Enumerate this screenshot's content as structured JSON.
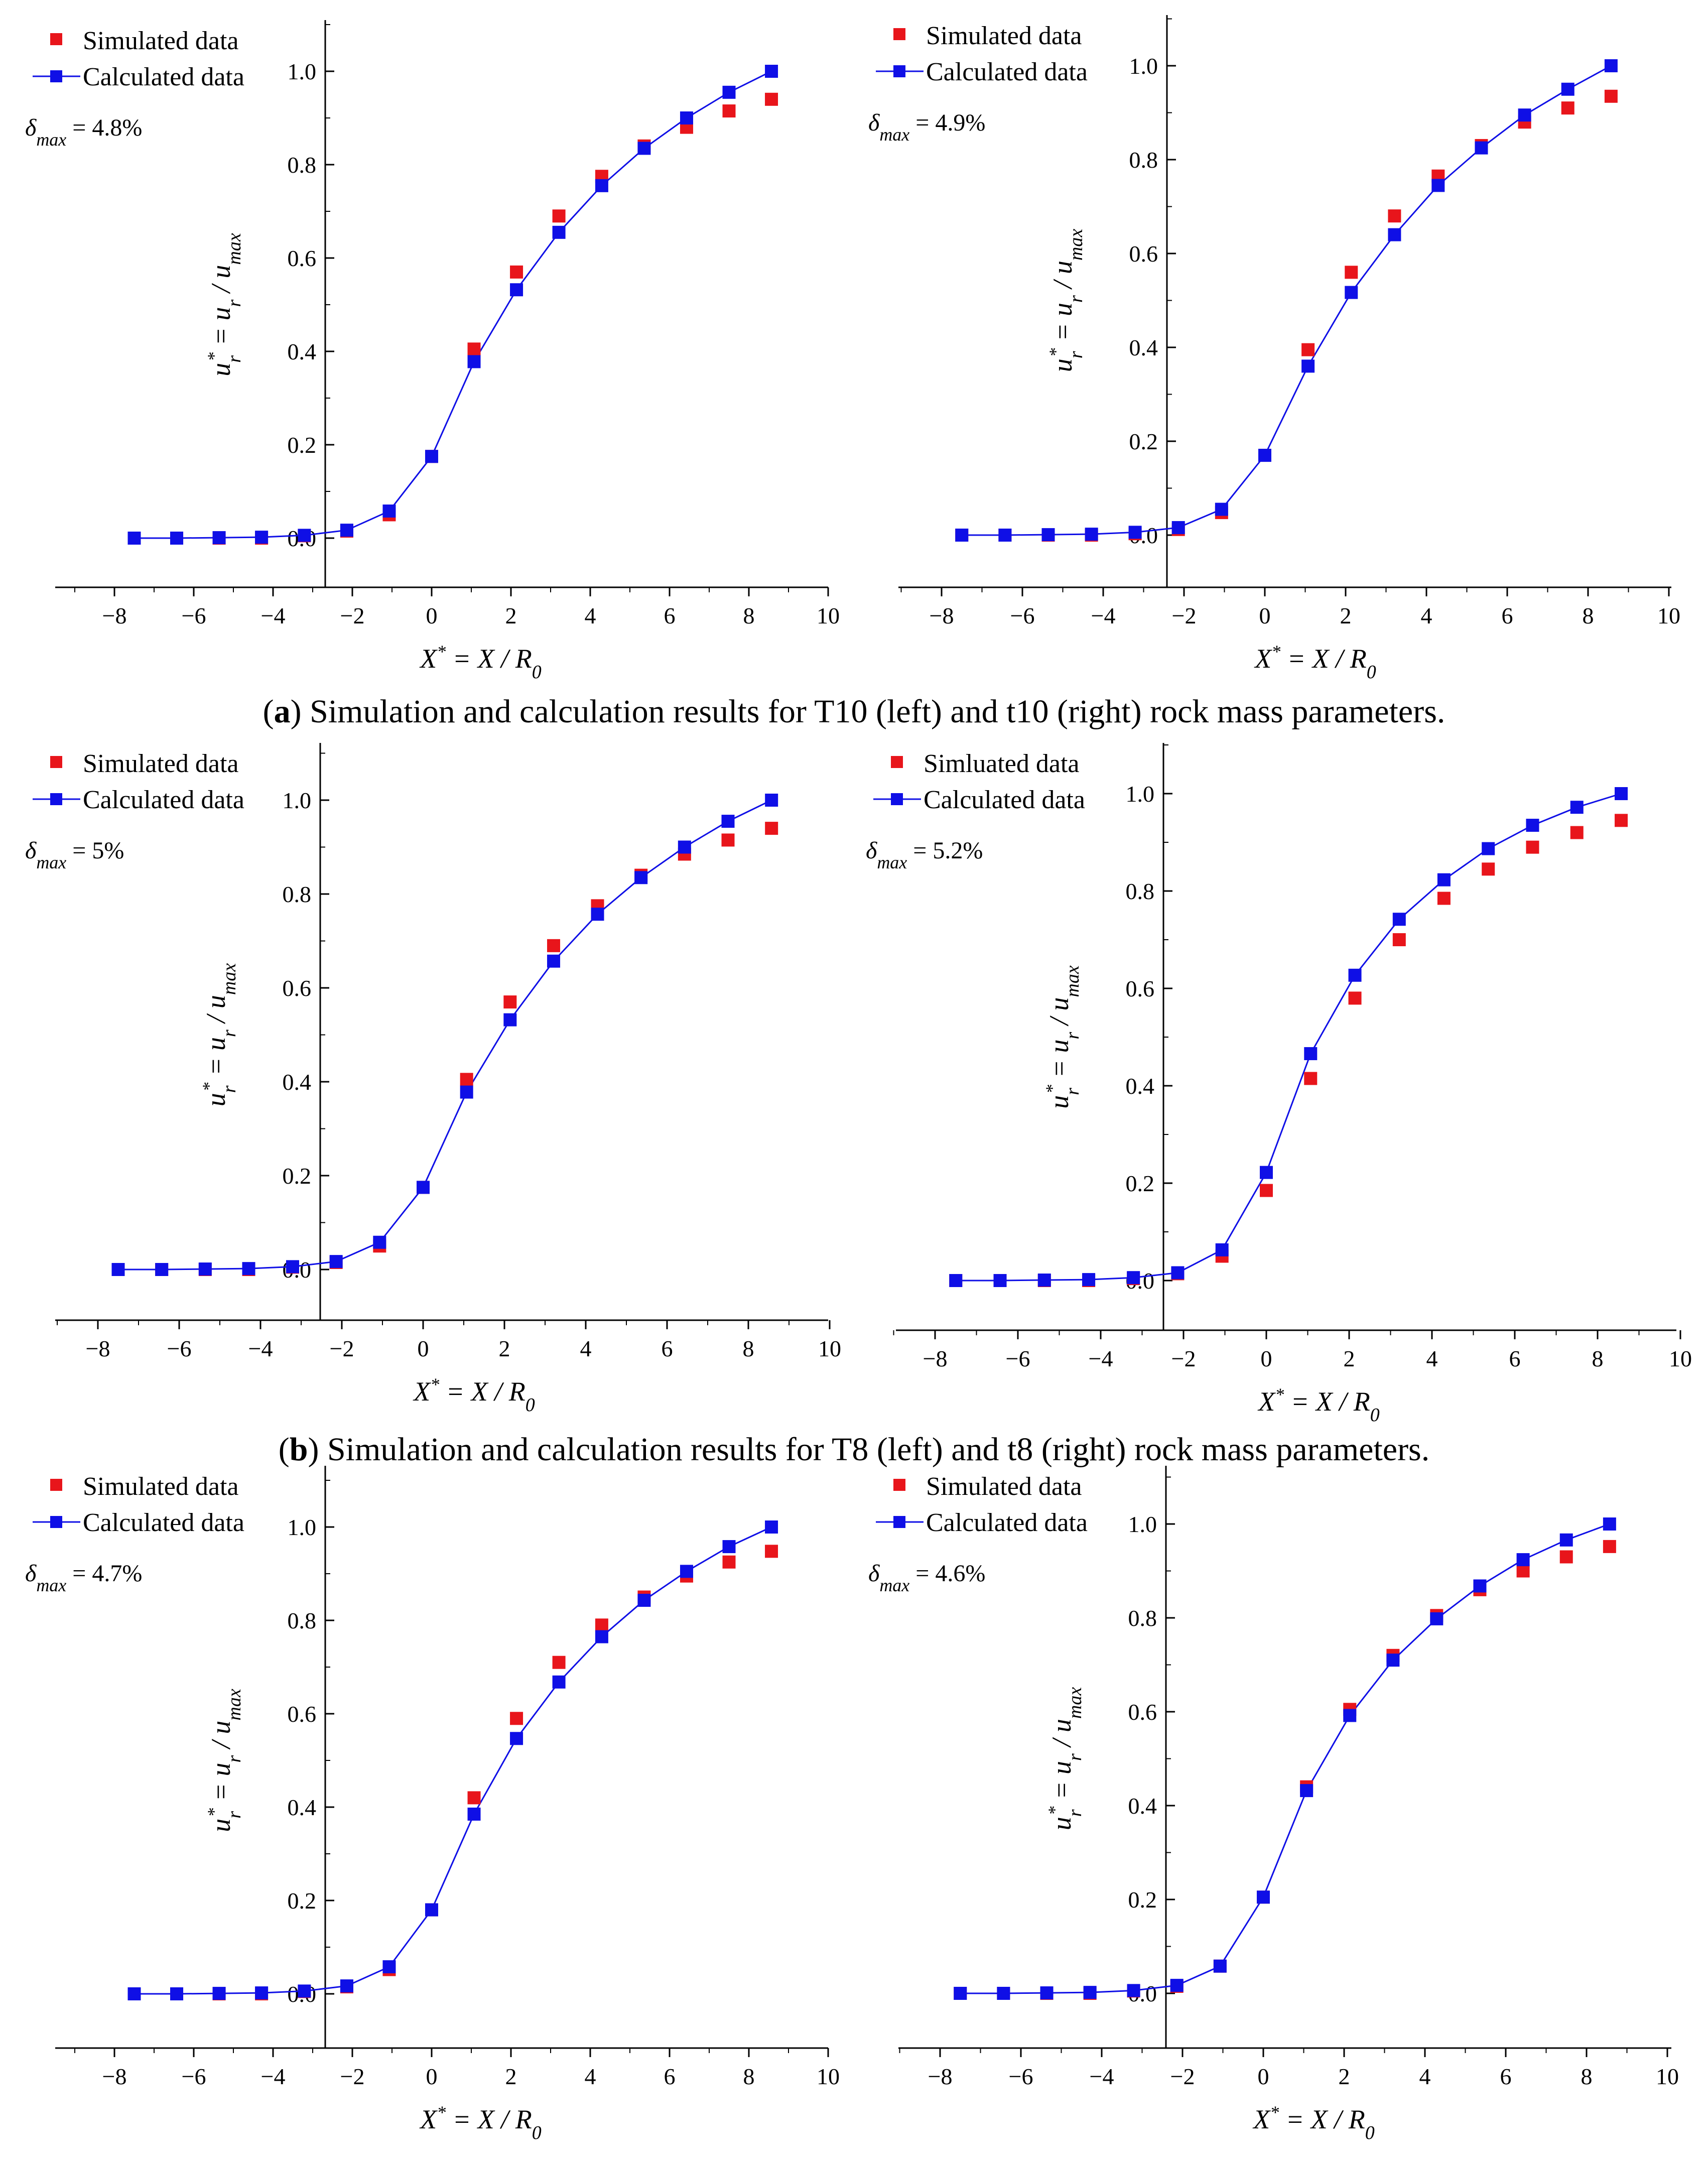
{
  "colors": {
    "simulated": "#e8151b",
    "calculated": "#0f0fe6",
    "axis": "#000000"
  },
  "captions": [
    {
      "letter": "a",
      "text": "Simulation and calculation results for T10 (left) and t10 (right) rock mass parameters."
    },
    {
      "letter": "b",
      "text": "Simulation and calculation results for T8 (left) and t8 (right) rock mass parameters."
    }
  ],
  "chart_data": [
    {
      "type": "line+scatter",
      "panel": "a-left",
      "legend": {
        "simulated": "Simulated data",
        "calculated": "Calculated data",
        "placement": "top-left"
      },
      "delta_text": "= 4.8%",
      "xlabel": "X* = X / R0",
      "ylabel": "ur* = ur / umax",
      "xlim": [
        -9,
        10
      ],
      "ylim": [
        -0.1,
        1.1
      ],
      "xticks": [
        -8,
        -6,
        -4,
        -2,
        0,
        2,
        4,
        6,
        8,
        10
      ],
      "xtick_labels": [
        "−8",
        "−6",
        "−4",
        "−2",
        "0",
        "2",
        "4",
        "6",
        "8",
        "10"
      ],
      "yticks": [
        0.0,
        0.2,
        0.4,
        0.6,
        0.8,
        1.0
      ],
      "ytick_labels": [
        "0.0",
        "0.2",
        "0.4",
        "0.6",
        "0.8",
        "1.0"
      ],
      "series": [
        {
          "name": "Simulated data",
          "x": [
            -7.5,
            -6.43,
            -5.36,
            -4.29,
            -3.21,
            -2.14,
            -1.07,
            0,
            1.07,
            2.14,
            3.21,
            4.29,
            5.36,
            6.43,
            7.5,
            8.57
          ],
          "y": [
            0.0,
            0.0,
            0.0,
            0.0,
            0.005,
            0.015,
            0.05,
            0.175,
            0.405,
            0.57,
            0.69,
            0.775,
            0.84,
            0.88,
            0.915,
            0.94
          ]
        },
        {
          "name": "Calculated data",
          "x": [
            -7.5,
            -6.43,
            -5.36,
            -4.29,
            -3.21,
            -2.14,
            -1.07,
            0,
            1.07,
            2.14,
            3.21,
            4.29,
            5.36,
            6.43,
            7.5,
            8.57
          ],
          "y": [
            0.0,
            0.0,
            0.001,
            0.002,
            0.006,
            0.017,
            0.058,
            0.175,
            0.378,
            0.532,
            0.655,
            0.755,
            0.835,
            0.9,
            0.955,
            1.0
          ]
        }
      ]
    },
    {
      "type": "line+scatter",
      "panel": "a-right",
      "legend": {
        "simulated": "Simulated data",
        "calculated": "Calculated data",
        "placement": "top-left"
      },
      "delta_text": "= 4.9%",
      "xlabel": "X* = X / R0",
      "ylabel": "ur* = ur / umax",
      "xlim": [
        -9,
        10
      ],
      "ylim": [
        -0.1,
        1.1
      ],
      "xticks": [
        -8,
        -6,
        -4,
        -2,
        0,
        2,
        4,
        6,
        8,
        10
      ],
      "xtick_labels": [
        "−8",
        "−6",
        "−4",
        "−2",
        "0",
        "2",
        "4",
        "6",
        "8",
        "10"
      ],
      "yticks": [
        0.0,
        0.2,
        0.4,
        0.6,
        0.8,
        1.0
      ],
      "ytick_labels": [
        "0.0",
        "0.2",
        "0.4",
        "0.6",
        "0.8",
        "1.0"
      ],
      "series": [
        {
          "name": "Simulated data",
          "x": [
            -7.5,
            -6.43,
            -5.36,
            -4.29,
            -3.21,
            -2.14,
            -1.07,
            0,
            1.07,
            2.14,
            3.21,
            4.29,
            5.36,
            6.43,
            7.5,
            8.57
          ],
          "y": [
            0.0,
            0.0,
            0.0,
            0.0,
            0.003,
            0.012,
            0.048,
            0.17,
            0.395,
            0.56,
            0.68,
            0.765,
            0.83,
            0.88,
            0.91,
            0.935
          ]
        },
        {
          "name": "Calculated data",
          "x": [
            -7.5,
            -6.43,
            -5.36,
            -4.29,
            -3.21,
            -2.14,
            -1.07,
            0,
            1.07,
            2.14,
            3.21,
            4.29,
            5.36,
            6.43,
            7.5,
            8.57
          ],
          "y": [
            0.0,
            0.0,
            0.001,
            0.002,
            0.006,
            0.016,
            0.055,
            0.17,
            0.36,
            0.517,
            0.64,
            0.745,
            0.825,
            0.895,
            0.95,
            1.0
          ]
        }
      ]
    },
    {
      "type": "line+scatter",
      "panel": "b-left",
      "legend": {
        "simulated": "Simulated data",
        "calculated": "Calculated data",
        "placement": "top-left"
      },
      "delta_text": "= 5%",
      "xlabel": "X* = X / R0",
      "ylabel": "ur* = ur / umax",
      "xlim": [
        -9,
        10
      ],
      "ylim": [
        -0.1,
        1.1
      ],
      "xticks": [
        -8,
        -6,
        -4,
        -2,
        0,
        2,
        4,
        6,
        8,
        10
      ],
      "xtick_labels": [
        "−8",
        "−6",
        "−4",
        "−2",
        "0",
        "2",
        "4",
        "6",
        "8",
        "10"
      ],
      "yticks": [
        0.0,
        0.2,
        0.4,
        0.6,
        0.8,
        1.0
      ],
      "ytick_labels": [
        "0.0",
        "0.2",
        "0.4",
        "0.6",
        "0.8",
        "1.0"
      ],
      "series": [
        {
          "name": "Simulated data",
          "x": [
            -7.5,
            -6.43,
            -5.36,
            -4.29,
            -3.21,
            -2.14,
            -1.07,
            0,
            1.07,
            2.14,
            3.21,
            4.29,
            5.36,
            6.43,
            7.5,
            8.57
          ],
          "y": [
            0.0,
            0.0,
            0.0,
            0.0,
            0.005,
            0.015,
            0.05,
            0.175,
            0.405,
            0.57,
            0.69,
            0.775,
            0.84,
            0.885,
            0.915,
            0.94
          ]
        },
        {
          "name": "Calculated data",
          "x": [
            -7.5,
            -6.43,
            -5.36,
            -4.29,
            -3.21,
            -2.14,
            -1.07,
            0,
            1.07,
            2.14,
            3.21,
            4.29,
            5.36,
            6.43,
            7.5,
            8.57
          ],
          "y": [
            0.0,
            0.0,
            0.001,
            0.002,
            0.006,
            0.017,
            0.058,
            0.175,
            0.378,
            0.532,
            0.657,
            0.757,
            0.835,
            0.9,
            0.955,
            1.0
          ]
        }
      ]
    },
    {
      "type": "line+scatter",
      "panel": "b-right",
      "legend": {
        "simulated": "Simluated data",
        "calculated": "Calculated data",
        "placement": "top-left"
      },
      "delta_text": "= 5.2%",
      "xlabel": "X* = X / R0",
      "ylabel": "ur* = ur / umax",
      "xlim": [
        -9,
        10
      ],
      "ylim": [
        -0.1,
        1.1
      ],
      "xticks": [
        -8,
        -6,
        -4,
        -2,
        0,
        2,
        4,
        6,
        8,
        10
      ],
      "xtick_labels": [
        "−8",
        "−6",
        "−4",
        "−2",
        "0",
        "2",
        "4",
        "6",
        "8",
        "10"
      ],
      "yticks": [
        0.0,
        0.2,
        0.4,
        0.6,
        0.8,
        1.0
      ],
      "ytick_labels": [
        "0.0",
        "0.2",
        "0.4",
        "0.6",
        "0.8",
        "1.0"
      ],
      "series": [
        {
          "name": "Simluated data",
          "x": [
            -7.5,
            -6.43,
            -5.36,
            -4.29,
            -3.21,
            -2.14,
            -1.07,
            0,
            1.07,
            2.14,
            3.21,
            4.29,
            5.36,
            6.43,
            7.5,
            8.57
          ],
          "y": [
            0.0,
            0.0,
            0.0,
            0.0,
            0.004,
            0.014,
            0.05,
            0.185,
            0.415,
            0.58,
            0.7,
            0.785,
            0.845,
            0.89,
            0.92,
            0.945
          ]
        },
        {
          "name": "Calculated data",
          "x": [
            -7.5,
            -6.43,
            -5.36,
            -4.29,
            -3.21,
            -2.14,
            -1.07,
            0,
            1.07,
            2.14,
            3.21,
            4.29,
            5.36,
            6.43,
            7.5,
            8.57
          ],
          "y": [
            0.0,
            0.0,
            0.001,
            0.002,
            0.006,
            0.016,
            0.063,
            0.222,
            0.466,
            0.627,
            0.742,
            0.823,
            0.887,
            0.935,
            0.972,
            1.0
          ]
        }
      ]
    },
    {
      "type": "line+scatter",
      "panel": "c-left",
      "legend": {
        "simulated": "Simulated data",
        "calculated": "Calculated data",
        "placement": "top-left"
      },
      "delta_text": "= 4.7%",
      "xlabel": "X* = X / R0",
      "ylabel": "ur* = ur / umax",
      "xlim": [
        -9,
        10
      ],
      "ylim": [
        -0.1,
        1.1
      ],
      "xticks": [
        -8,
        -6,
        -4,
        -2,
        0,
        2,
        4,
        6,
        8,
        10
      ],
      "xtick_labels": [
        "−8",
        "−6",
        "−4",
        "−2",
        "0",
        "2",
        "4",
        "6",
        "8",
        "10"
      ],
      "yticks": [
        0.0,
        0.2,
        0.4,
        0.6,
        0.8,
        1.0
      ],
      "ytick_labels": [
        "0.0",
        "0.2",
        "0.4",
        "0.6",
        "0.8",
        "1.0"
      ],
      "series": [
        {
          "name": "Simulated data",
          "x": [
            -7.5,
            -6.43,
            -5.36,
            -4.29,
            -3.21,
            -2.14,
            -1.07,
            0,
            1.07,
            2.14,
            3.21,
            4.29,
            5.36,
            6.43,
            7.5,
            8.57
          ],
          "y": [
            0.0,
            0.0,
            0.0,
            0.0,
            0.005,
            0.015,
            0.052,
            0.18,
            0.42,
            0.59,
            0.71,
            0.79,
            0.85,
            0.895,
            0.925,
            0.948
          ]
        },
        {
          "name": "Calculated data",
          "x": [
            -7.5,
            -6.43,
            -5.36,
            -4.29,
            -3.21,
            -2.14,
            -1.07,
            0,
            1.07,
            2.14,
            3.21,
            4.29,
            5.36,
            6.43,
            7.5,
            8.57
          ],
          "y": [
            0.0,
            0.0,
            0.001,
            0.002,
            0.006,
            0.017,
            0.058,
            0.18,
            0.385,
            0.547,
            0.668,
            0.765,
            0.843,
            0.905,
            0.958,
            1.0
          ]
        }
      ]
    },
    {
      "type": "line+scatter",
      "panel": "c-right",
      "legend": {
        "simulated": "Simulated data",
        "calculated": "Calculated data",
        "placement": "top-left"
      },
      "delta_text": "= 4.6%",
      "xlabel": "X* = X / R0",
      "ylabel": "ur* = ur / umax",
      "xlim": [
        -9,
        10
      ],
      "ylim": [
        -0.1,
        1.1
      ],
      "xticks": [
        -8,
        -6,
        -4,
        -2,
        0,
        2,
        4,
        6,
        8,
        10
      ],
      "xtick_labels": [
        "−8",
        "−6",
        "−4",
        "−2",
        "0",
        "2",
        "4",
        "6",
        "8",
        "10"
      ],
      "yticks": [
        0.0,
        0.2,
        0.4,
        0.6,
        0.8,
        1.0
      ],
      "ytick_labels": [
        "0.0",
        "0.2",
        "0.4",
        "0.6",
        "0.8",
        "1.0"
      ],
      "series": [
        {
          "name": "Simulated data",
          "x": [
            -7.5,
            -6.43,
            -5.36,
            -4.29,
            -3.21,
            -2.14,
            -1.07,
            0,
            1.07,
            2.14,
            3.21,
            4.29,
            5.36,
            6.43,
            7.5,
            8.57
          ],
          "y": [
            0.0,
            0.0,
            0.0,
            0.0,
            0.005,
            0.015,
            0.058,
            0.205,
            0.44,
            0.605,
            0.72,
            0.805,
            0.86,
            0.9,
            0.93,
            0.952
          ]
        },
        {
          "name": "Calculated data",
          "x": [
            -7.5,
            -6.43,
            -5.36,
            -4.29,
            -3.21,
            -2.14,
            -1.07,
            0,
            1.07,
            2.14,
            3.21,
            4.29,
            5.36,
            6.43,
            7.5,
            8.57
          ],
          "y": [
            0.0,
            0.0,
            0.001,
            0.002,
            0.006,
            0.017,
            0.058,
            0.205,
            0.432,
            0.592,
            0.71,
            0.798,
            0.868,
            0.924,
            0.966,
            1.0
          ]
        }
      ]
    }
  ]
}
